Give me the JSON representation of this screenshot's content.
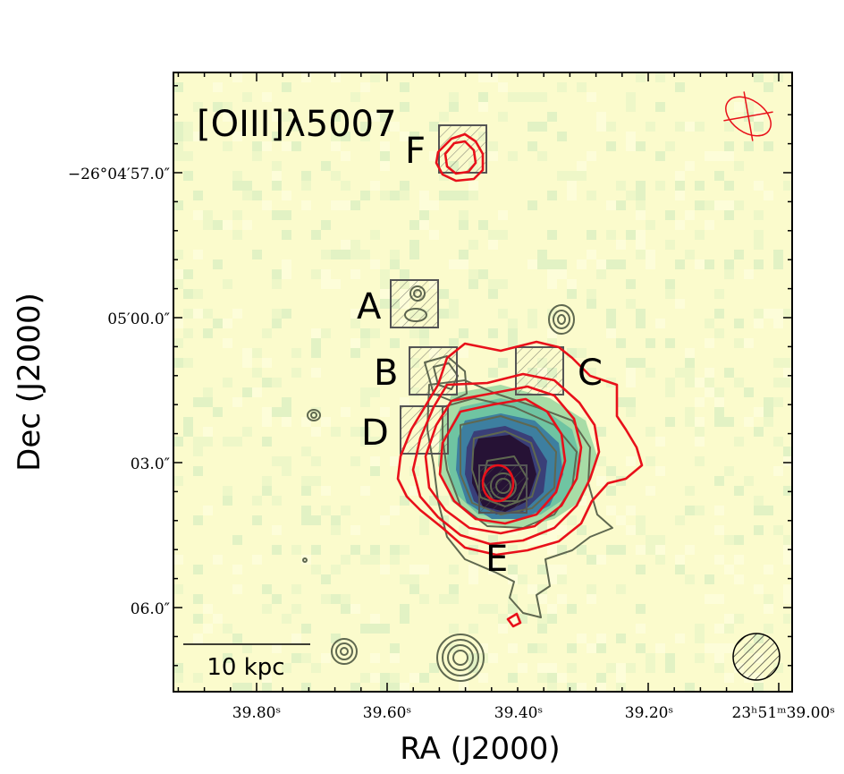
{
  "chart_data": {
    "type": "image",
    "title": "[OIII]λ5007",
    "xlabel": "RA (J2000)",
    "ylabel": "Dec (J2000)",
    "x_ticks": [
      "39.80ˢ",
      "39.60ˢ",
      "39.40ˢ",
      "39.20ˢ",
      "23ʰ51ᵐ39.00ˢ"
    ],
    "y_ticks": [
      "−26°04′57.0″",
      "05′00.0″",
      "03.0″",
      "06.0″"
    ],
    "regions": [
      {
        "name": "A"
      },
      {
        "name": "B"
      },
      {
        "name": "C"
      },
      {
        "name": "D"
      },
      {
        "name": "E"
      },
      {
        "name": "F"
      }
    ],
    "scale_bar": {
      "label": "10 kpc"
    },
    "colors": {
      "background": "#fbfbcc",
      "red_contour": "#e8101a",
      "gray_contour": "#5f6850",
      "emission_core": "#2a1640",
      "emission_mid": "#3c5a8c",
      "emission_outer": "#5fbf9a"
    }
  }
}
